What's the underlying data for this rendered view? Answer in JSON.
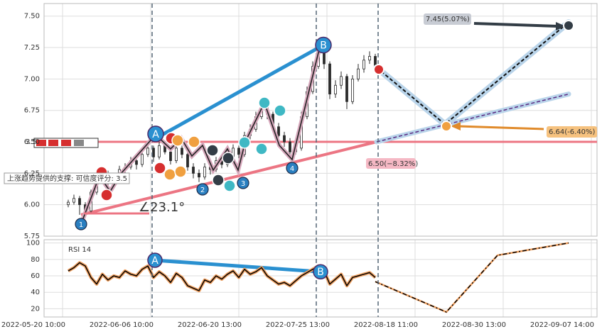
{
  "chart_data": [
    {
      "type": "candlestick",
      "color": "#2b2b2b",
      "x": [
        14,
        16,
        18,
        20,
        22,
        24,
        26,
        28,
        30,
        32,
        34,
        36,
        38,
        40,
        42,
        44,
        46,
        48,
        50,
        52,
        54,
        56,
        58,
        60,
        62,
        64,
        66,
        68,
        70,
        72,
        74,
        76,
        78,
        80,
        82,
        84,
        86,
        88,
        90,
        92,
        94,
        96,
        98,
        100,
        102,
        104,
        106,
        108,
        110,
        112,
        114,
        116,
        118,
        120,
        122
      ],
      "ohlc": [
        [
          6.0,
          6.04,
          5.98,
          6.02
        ],
        [
          6.02,
          6.08,
          6.0,
          6.05
        ],
        [
          6.05,
          6.07,
          5.92,
          6.0
        ],
        [
          6.0,
          6.02,
          5.9,
          5.95
        ],
        [
          5.95,
          6.12,
          5.94,
          6.1
        ],
        [
          6.1,
          6.24,
          6.08,
          6.2
        ],
        [
          6.2,
          6.3,
          6.18,
          6.25
        ],
        [
          6.25,
          6.27,
          6.14,
          6.18
        ],
        [
          6.18,
          6.25,
          6.15,
          6.22
        ],
        [
          6.22,
          6.31,
          6.2,
          6.28
        ],
        [
          6.28,
          6.33,
          6.25,
          6.3
        ],
        [
          6.3,
          6.38,
          6.28,
          6.35
        ],
        [
          6.35,
          6.37,
          6.28,
          6.32
        ],
        [
          6.32,
          6.43,
          6.3,
          6.4
        ],
        [
          6.4,
          6.5,
          6.38,
          6.45
        ],
        [
          6.45,
          6.47,
          6.34,
          6.38
        ],
        [
          6.38,
          6.5,
          6.36,
          6.47
        ],
        [
          6.47,
          6.49,
          6.4,
          6.42
        ],
        [
          6.42,
          6.44,
          6.32,
          6.35
        ],
        [
          6.35,
          6.48,
          6.33,
          6.45
        ],
        [
          6.45,
          6.47,
          6.37,
          6.4
        ],
        [
          6.4,
          6.42,
          6.27,
          6.3
        ],
        [
          6.3,
          6.33,
          6.21,
          6.25
        ],
        [
          6.25,
          6.28,
          6.18,
          6.22
        ],
        [
          6.22,
          6.33,
          6.2,
          6.3
        ],
        [
          6.3,
          6.32,
          6.24,
          6.28
        ],
        [
          6.28,
          6.38,
          6.26,
          6.35
        ],
        [
          6.35,
          6.37,
          6.29,
          6.32
        ],
        [
          6.32,
          6.41,
          6.3,
          6.38
        ],
        [
          6.38,
          6.48,
          6.36,
          6.45
        ],
        [
          6.45,
          6.47,
          6.37,
          6.4
        ],
        [
          6.4,
          6.58,
          6.38,
          6.55
        ],
        [
          6.55,
          6.64,
          6.52,
          6.6
        ],
        [
          6.6,
          6.74,
          6.58,
          6.7
        ],
        [
          6.7,
          6.82,
          6.68,
          6.78
        ],
        [
          6.78,
          6.8,
          6.68,
          6.72
        ],
        [
          6.72,
          6.74,
          6.58,
          6.62
        ],
        [
          6.62,
          6.65,
          6.52,
          6.55
        ],
        [
          6.55,
          6.58,
          6.46,
          6.5
        ],
        [
          6.5,
          6.53,
          6.38,
          6.42
        ],
        [
          6.42,
          6.49,
          6.4,
          6.45
        ],
        [
          6.45,
          6.74,
          6.43,
          6.7
        ],
        [
          6.7,
          6.94,
          6.68,
          6.9
        ],
        [
          6.9,
          7.14,
          6.88,
          7.1
        ],
        [
          7.1,
          7.26,
          7.08,
          7.22
        ],
        [
          7.22,
          7.24,
          7.08,
          7.12
        ],
        [
          7.12,
          7.14,
          6.84,
          6.88
        ],
        [
          6.88,
          6.99,
          6.85,
          6.95
        ],
        [
          6.95,
          7.06,
          6.92,
          7.02
        ],
        [
          7.02,
          7.04,
          6.76,
          6.82
        ],
        [
          6.82,
          7.03,
          6.8,
          7.0
        ],
        [
          7.0,
          7.12,
          6.98,
          7.08
        ],
        [
          7.08,
          7.19,
          7.05,
          7.15
        ],
        [
          7.15,
          7.22,
          7.12,
          7.18
        ],
        [
          7.18,
          7.2,
          7.06,
          7.1
        ]
      ],
      "projection": {
        "x": [
          122.5,
          146.5,
          190
        ],
        "values": [
          7.09,
          6.64,
          7.45
        ],
        "color": "#111"
      },
      "support_projection": {
        "x": [
          122.5,
          190
        ],
        "values": [
          6.5,
          6.88
        ],
        "color": "#5a2a82"
      },
      "support_line": {
        "x": [
          18.5,
          122.5
        ],
        "values": [
          5.92,
          6.5
        ],
        "color": "#ec7583"
      },
      "channel_line": {
        "x": [
          45.75,
          103.75
        ],
        "values": [
          6.54,
          7.27
        ],
        "color": "#2a90d0"
      },
      "support_level": {
        "value": 6.5,
        "label": "3.5",
        "color": "#ec7583"
      },
      "xlim": [
        5.5,
        200
      ],
      "ylim": [
        5.75,
        7.6
      ],
      "yticks": [
        {
          "value": 5.75,
          "label": "5.75"
        },
        {
          "value": 6,
          "label": "6.00"
        },
        {
          "value": 6.25,
          "label": "6.25"
        },
        {
          "value": 6.5,
          "label": "6.50"
        },
        {
          "value": 6.75,
          "label": "6.75"
        },
        {
          "value": 7,
          "label": "7.00"
        },
        {
          "value": 7.25,
          "label": "7.25"
        },
        {
          "value": 7.5,
          "label": "7.50"
        }
      ],
      "xticks": [
        {
          "value": 12,
          "label": "2022-05-20 10:00"
        },
        {
          "value": 43,
          "label": "2022-06-06 10:00"
        },
        {
          "value": 74,
          "label": "2022-06-20 13:00"
        },
        {
          "value": 105,
          "label": "2022-07-25 13:00"
        },
        {
          "value": 136,
          "label": "2022-08-18 11:00"
        },
        {
          "value": 167,
          "label": "2022-08-30 13:00"
        },
        {
          "value": 198,
          "label": "2022-09-07 14:00"
        }
      ],
      "grid": true,
      "annotations": {
        "support_note": "上涨趋势提供的支撑: 可信度评分: 3.5",
        "angle": "∠23.1°",
        "target_low": "6.50(−8.32%)",
        "target_high": "7.45(5.07%)",
        "target_mid": "6.64(-6.40%)",
        "wave_labels": [
          "1",
          "2",
          "3",
          "4"
        ],
        "pattern_labels": [
          "A",
          "B"
        ]
      }
    },
    {
      "type": "line",
      "title": "RSI 14",
      "series": [
        {
          "color": "#000",
          "x": [
            14,
            16,
            18,
            20,
            22,
            24,
            26,
            28,
            30,
            32,
            34,
            36,
            38,
            40,
            42,
            44,
            46,
            48,
            50,
            52,
            54,
            56,
            58,
            60,
            62,
            64,
            66,
            68,
            70,
            72,
            74,
            76,
            78,
            80,
            82,
            84,
            86,
            88,
            90,
            92,
            94,
            96,
            98,
            100,
            102,
            104,
            106,
            108,
            110,
            112,
            114,
            116,
            118,
            120,
            122
          ],
          "values": [
            66,
            70,
            76,
            72,
            58,
            50,
            62,
            55,
            60,
            58,
            66,
            62,
            60,
            68,
            72,
            58,
            65,
            60,
            52,
            63,
            58,
            48,
            45,
            42,
            55,
            52,
            60,
            56,
            62,
            66,
            58,
            68,
            62,
            65,
            70,
            60,
            55,
            50,
            52,
            48,
            54,
            60,
            64,
            68,
            72,
            66,
            50,
            56,
            62,
            48,
            58,
            60,
            62,
            64,
            58
          ]
        },
        {
          "color": "#000",
          "x": [
            122,
            147,
            165,
            190
          ],
          "values": [
            53,
            16,
            85,
            100
          ]
        }
      ],
      "channel_line": {
        "x": [
          44.5,
          102.75
        ],
        "values": [
          79,
          65
        ],
        "color": "#2a90d0"
      },
      "xlim": [
        5.5,
        200
      ],
      "ylim": [
        10,
        104
      ],
      "yticks": [
        20,
        40,
        60,
        80,
        100
      ],
      "grid": true,
      "pattern_labels": [
        "A",
        "B"
      ]
    }
  ]
}
